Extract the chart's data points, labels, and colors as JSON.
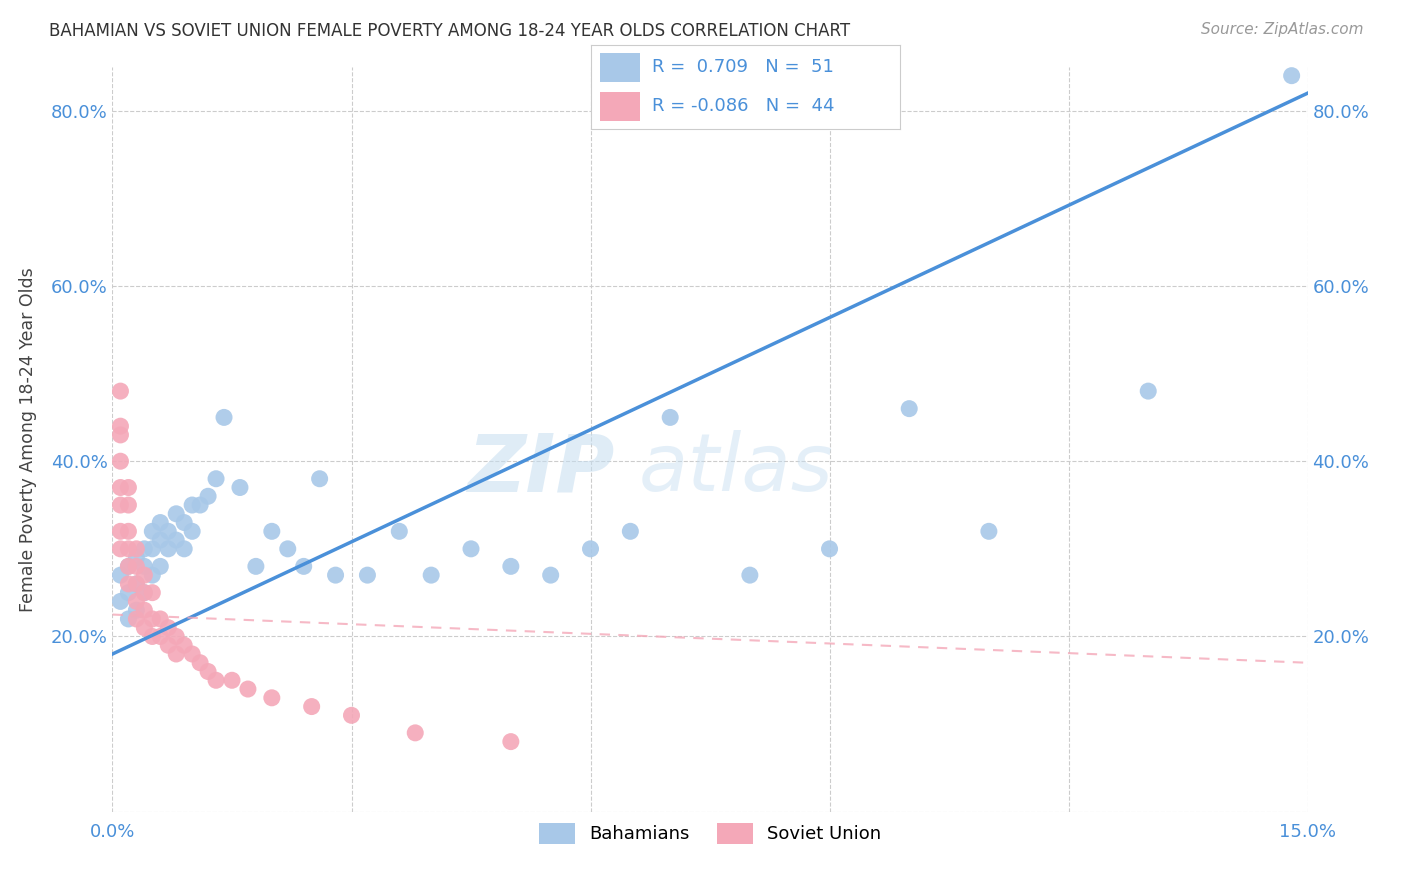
{
  "title": "BAHAMIAN VS SOVIET UNION FEMALE POVERTY AMONG 18-24 YEAR OLDS CORRELATION CHART",
  "source": "Source: ZipAtlas.com",
  "ylabel": "Female Poverty Among 18-24 Year Olds",
  "xlim": [
    0.0,
    0.15
  ],
  "ylim": [
    0.0,
    0.85
  ],
  "x_ticks": [
    0.0,
    0.03,
    0.06,
    0.09,
    0.12,
    0.15
  ],
  "x_tick_labels": [
    "0.0%",
    "",
    "",
    "",
    "",
    "15.0%"
  ],
  "y_ticks": [
    0.0,
    0.2,
    0.4,
    0.6,
    0.8
  ],
  "y_tick_labels": [
    "",
    "20.0%",
    "40.0%",
    "60.0%",
    "80.0%"
  ],
  "bahamas_color": "#a8c8e8",
  "soviet_color": "#f4a8b8",
  "bahamas_line_color": "#4a90d9",
  "soviet_line_color": "#f4a8b8",
  "R_bahamas": 0.709,
  "N_bahamas": 51,
  "R_soviet": -0.086,
  "N_soviet": 44,
  "watermark_zip": "ZIP",
  "watermark_atlas": "atlas",
  "bahamas_x": [
    0.001,
    0.001,
    0.002,
    0.002,
    0.002,
    0.003,
    0.003,
    0.003,
    0.004,
    0.004,
    0.004,
    0.005,
    0.005,
    0.005,
    0.006,
    0.006,
    0.006,
    0.007,
    0.007,
    0.008,
    0.008,
    0.009,
    0.009,
    0.01,
    0.01,
    0.011,
    0.012,
    0.013,
    0.014,
    0.016,
    0.018,
    0.02,
    0.022,
    0.024,
    0.026,
    0.028,
    0.032,
    0.036,
    0.04,
    0.045,
    0.05,
    0.055,
    0.06,
    0.065,
    0.07,
    0.08,
    0.09,
    0.1,
    0.11,
    0.13,
    0.148
  ],
  "bahamas_y": [
    0.24,
    0.27,
    0.22,
    0.25,
    0.28,
    0.23,
    0.26,
    0.29,
    0.25,
    0.28,
    0.3,
    0.27,
    0.3,
    0.32,
    0.28,
    0.31,
    0.33,
    0.3,
    0.32,
    0.31,
    0.34,
    0.3,
    0.33,
    0.32,
    0.35,
    0.35,
    0.36,
    0.38,
    0.45,
    0.37,
    0.28,
    0.32,
    0.3,
    0.28,
    0.38,
    0.27,
    0.27,
    0.32,
    0.27,
    0.3,
    0.28,
    0.27,
    0.3,
    0.32,
    0.45,
    0.27,
    0.3,
    0.46,
    0.32,
    0.48,
    0.84
  ],
  "soviet_x": [
    0.001,
    0.001,
    0.001,
    0.001,
    0.001,
    0.001,
    0.001,
    0.001,
    0.002,
    0.002,
    0.002,
    0.002,
    0.002,
    0.002,
    0.003,
    0.003,
    0.003,
    0.003,
    0.003,
    0.004,
    0.004,
    0.004,
    0.004,
    0.005,
    0.005,
    0.005,
    0.006,
    0.006,
    0.007,
    0.007,
    0.008,
    0.008,
    0.009,
    0.01,
    0.011,
    0.012,
    0.013,
    0.015,
    0.017,
    0.02,
    0.025,
    0.03,
    0.038,
    0.05
  ],
  "soviet_y": [
    0.48,
    0.44,
    0.43,
    0.4,
    0.37,
    0.35,
    0.32,
    0.3,
    0.37,
    0.35,
    0.32,
    0.3,
    0.28,
    0.26,
    0.3,
    0.28,
    0.26,
    0.24,
    0.22,
    0.27,
    0.25,
    0.23,
    0.21,
    0.25,
    0.22,
    0.2,
    0.22,
    0.2,
    0.21,
    0.19,
    0.2,
    0.18,
    0.19,
    0.18,
    0.17,
    0.16,
    0.15,
    0.15,
    0.14,
    0.13,
    0.12,
    0.11,
    0.09,
    0.08
  ],
  "bahamas_trendline_x": [
    0.0,
    0.15
  ],
  "bahamas_trendline_y": [
    0.18,
    0.82
  ],
  "soviet_trendline_x": [
    0.0,
    0.15
  ],
  "soviet_trendline_y": [
    0.225,
    0.17
  ]
}
